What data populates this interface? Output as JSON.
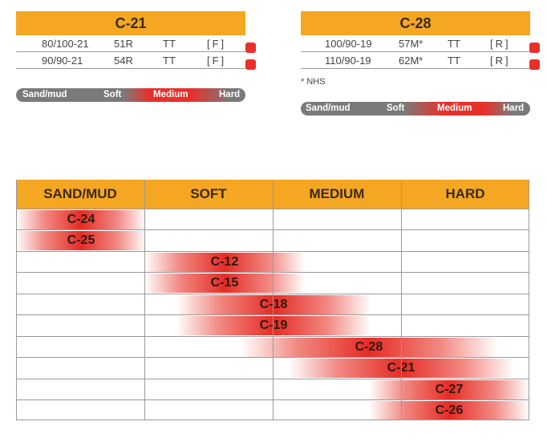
{
  "c21": {
    "title": "C-21",
    "rows": [
      {
        "size": "80/100-21",
        "load": "51R",
        "type": "TT",
        "pos": "[F]"
      },
      {
        "size": "90/90-21",
        "load": "54R",
        "type": "TT",
        "pos": "[F]"
      }
    ],
    "terrain_bar": [
      "Sand/mud",
      "Soft",
      "Medium",
      "Hard"
    ]
  },
  "c28": {
    "title": "C-28",
    "rows": [
      {
        "size": "100/90-19",
        "load": "57M*",
        "type": "TT",
        "pos": "[R]"
      },
      {
        "size": "110/90-19",
        "load": "62M*",
        "type": "TT",
        "pos": "[R]"
      }
    ],
    "note": "* NHS",
    "terrain_bar": [
      "Sand/mud",
      "Soft",
      "Medium",
      "Hard"
    ]
  },
  "colors": {
    "accent": "#f5a623",
    "highlight": "#e8302a",
    "bar": "#7a7a7a"
  },
  "terrain_table": {
    "headers": [
      "SAND/MUD",
      "SOFT",
      "MEDIUM",
      "HARD"
    ],
    "rows": [
      "C-24",
      "C-25",
      "C-12",
      "C-15",
      "C-18",
      "C-19",
      "C-28",
      "C-21",
      "C-27",
      "C-26"
    ]
  }
}
